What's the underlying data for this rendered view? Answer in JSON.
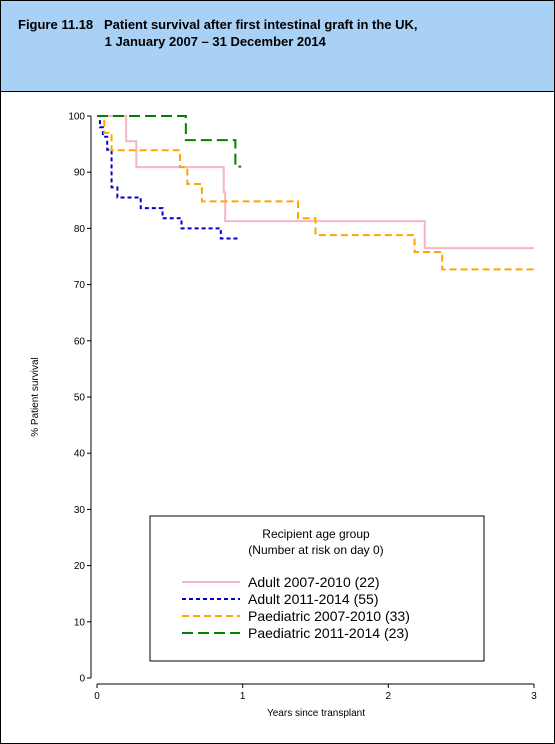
{
  "figure": {
    "title_line1": "Figure 11.18   Patient survival after first intestinal graft in the UK,",
    "title_line2": "                        1 January 2007 – 31 December 2014"
  },
  "chart_data": {
    "type": "line",
    "step": true,
    "xlabel": "Years since transplant",
    "ylabel": "% Patient survival",
    "xlim": [
      0,
      3
    ],
    "ylim": [
      0,
      100
    ],
    "x_ticks": [
      0,
      1,
      2,
      3
    ],
    "y_ticks": [
      0,
      10,
      20,
      30,
      40,
      50,
      60,
      70,
      80,
      90,
      100
    ],
    "grid": false,
    "legend": {
      "title_line1": "Recipient age group",
      "title_line2": "(Number at risk on day 0)",
      "placement": "bottom-left"
    },
    "series": [
      {
        "name": "Adult 2007-2010 (22)",
        "color": "#f4b6c2",
        "dash": "solid",
        "x": [
          0,
          0.2,
          0.27,
          0.87,
          0.88,
          2.25,
          3.0
        ],
        "y": [
          100,
          95.5,
          90.9,
          86.4,
          81.3,
          76.5,
          76.5
        ]
      },
      {
        "name": "Adult 2011-2014 (55)",
        "color": "#0000cc",
        "dash": "short",
        "x": [
          0,
          0.02,
          0.04,
          0.07,
          0.1,
          0.14,
          0.3,
          0.45,
          0.58,
          0.85,
          0.97
        ],
        "y": [
          100,
          98,
          96.3,
          94,
          87.3,
          85.5,
          83.6,
          81.8,
          80.0,
          78.2,
          78.2
        ]
      },
      {
        "name": "Paediatric 2007-2010 (33)",
        "color": "#ffa500",
        "dash": "medium",
        "x": [
          0,
          0.05,
          0.1,
          0.57,
          0.62,
          0.72,
          1.38,
          1.5,
          2.18,
          2.37,
          3.0
        ],
        "y": [
          100,
          97,
          93.9,
          90.9,
          87.9,
          84.8,
          81.8,
          78.8,
          75.8,
          72.7,
          72.7
        ]
      },
      {
        "name": "Paediatric 2011-2014 (23)",
        "color": "#008000",
        "dash": "long",
        "x": [
          0,
          0.61,
          0.95,
          0.99
        ],
        "y": [
          100,
          95.7,
          91.0,
          91.0
        ]
      }
    ]
  }
}
